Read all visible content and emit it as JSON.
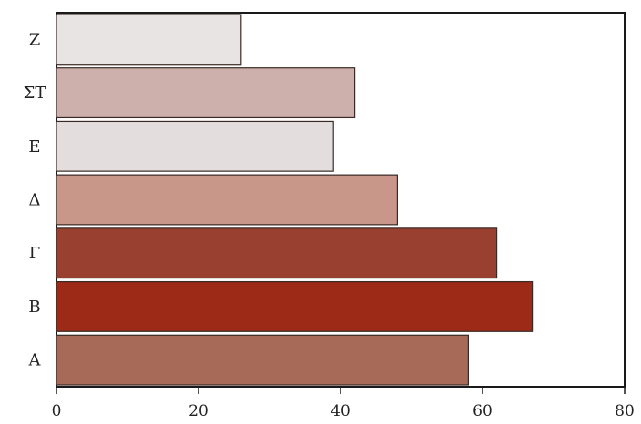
{
  "chart_data": {
    "type": "bar",
    "orientation": "horizontal",
    "categories": [
      "Α",
      "Β",
      "Γ",
      "Δ",
      "Ε",
      "ΣΤ",
      "Ζ"
    ],
    "values": [
      58,
      67,
      62,
      48,
      39,
      42,
      26
    ],
    "bar_colors": [
      "#a86a58",
      "#9c2a16",
      "#9a4030",
      "#c9968a",
      "#e3dedd",
      "#cdb0ab",
      "#e8e4e3"
    ],
    "title": "",
    "xlabel": "",
    "ylabel": "",
    "xlim": [
      0,
      80
    ],
    "xticks": [
      0,
      20,
      40,
      60,
      80
    ],
    "grid": false,
    "legend": "none"
  }
}
